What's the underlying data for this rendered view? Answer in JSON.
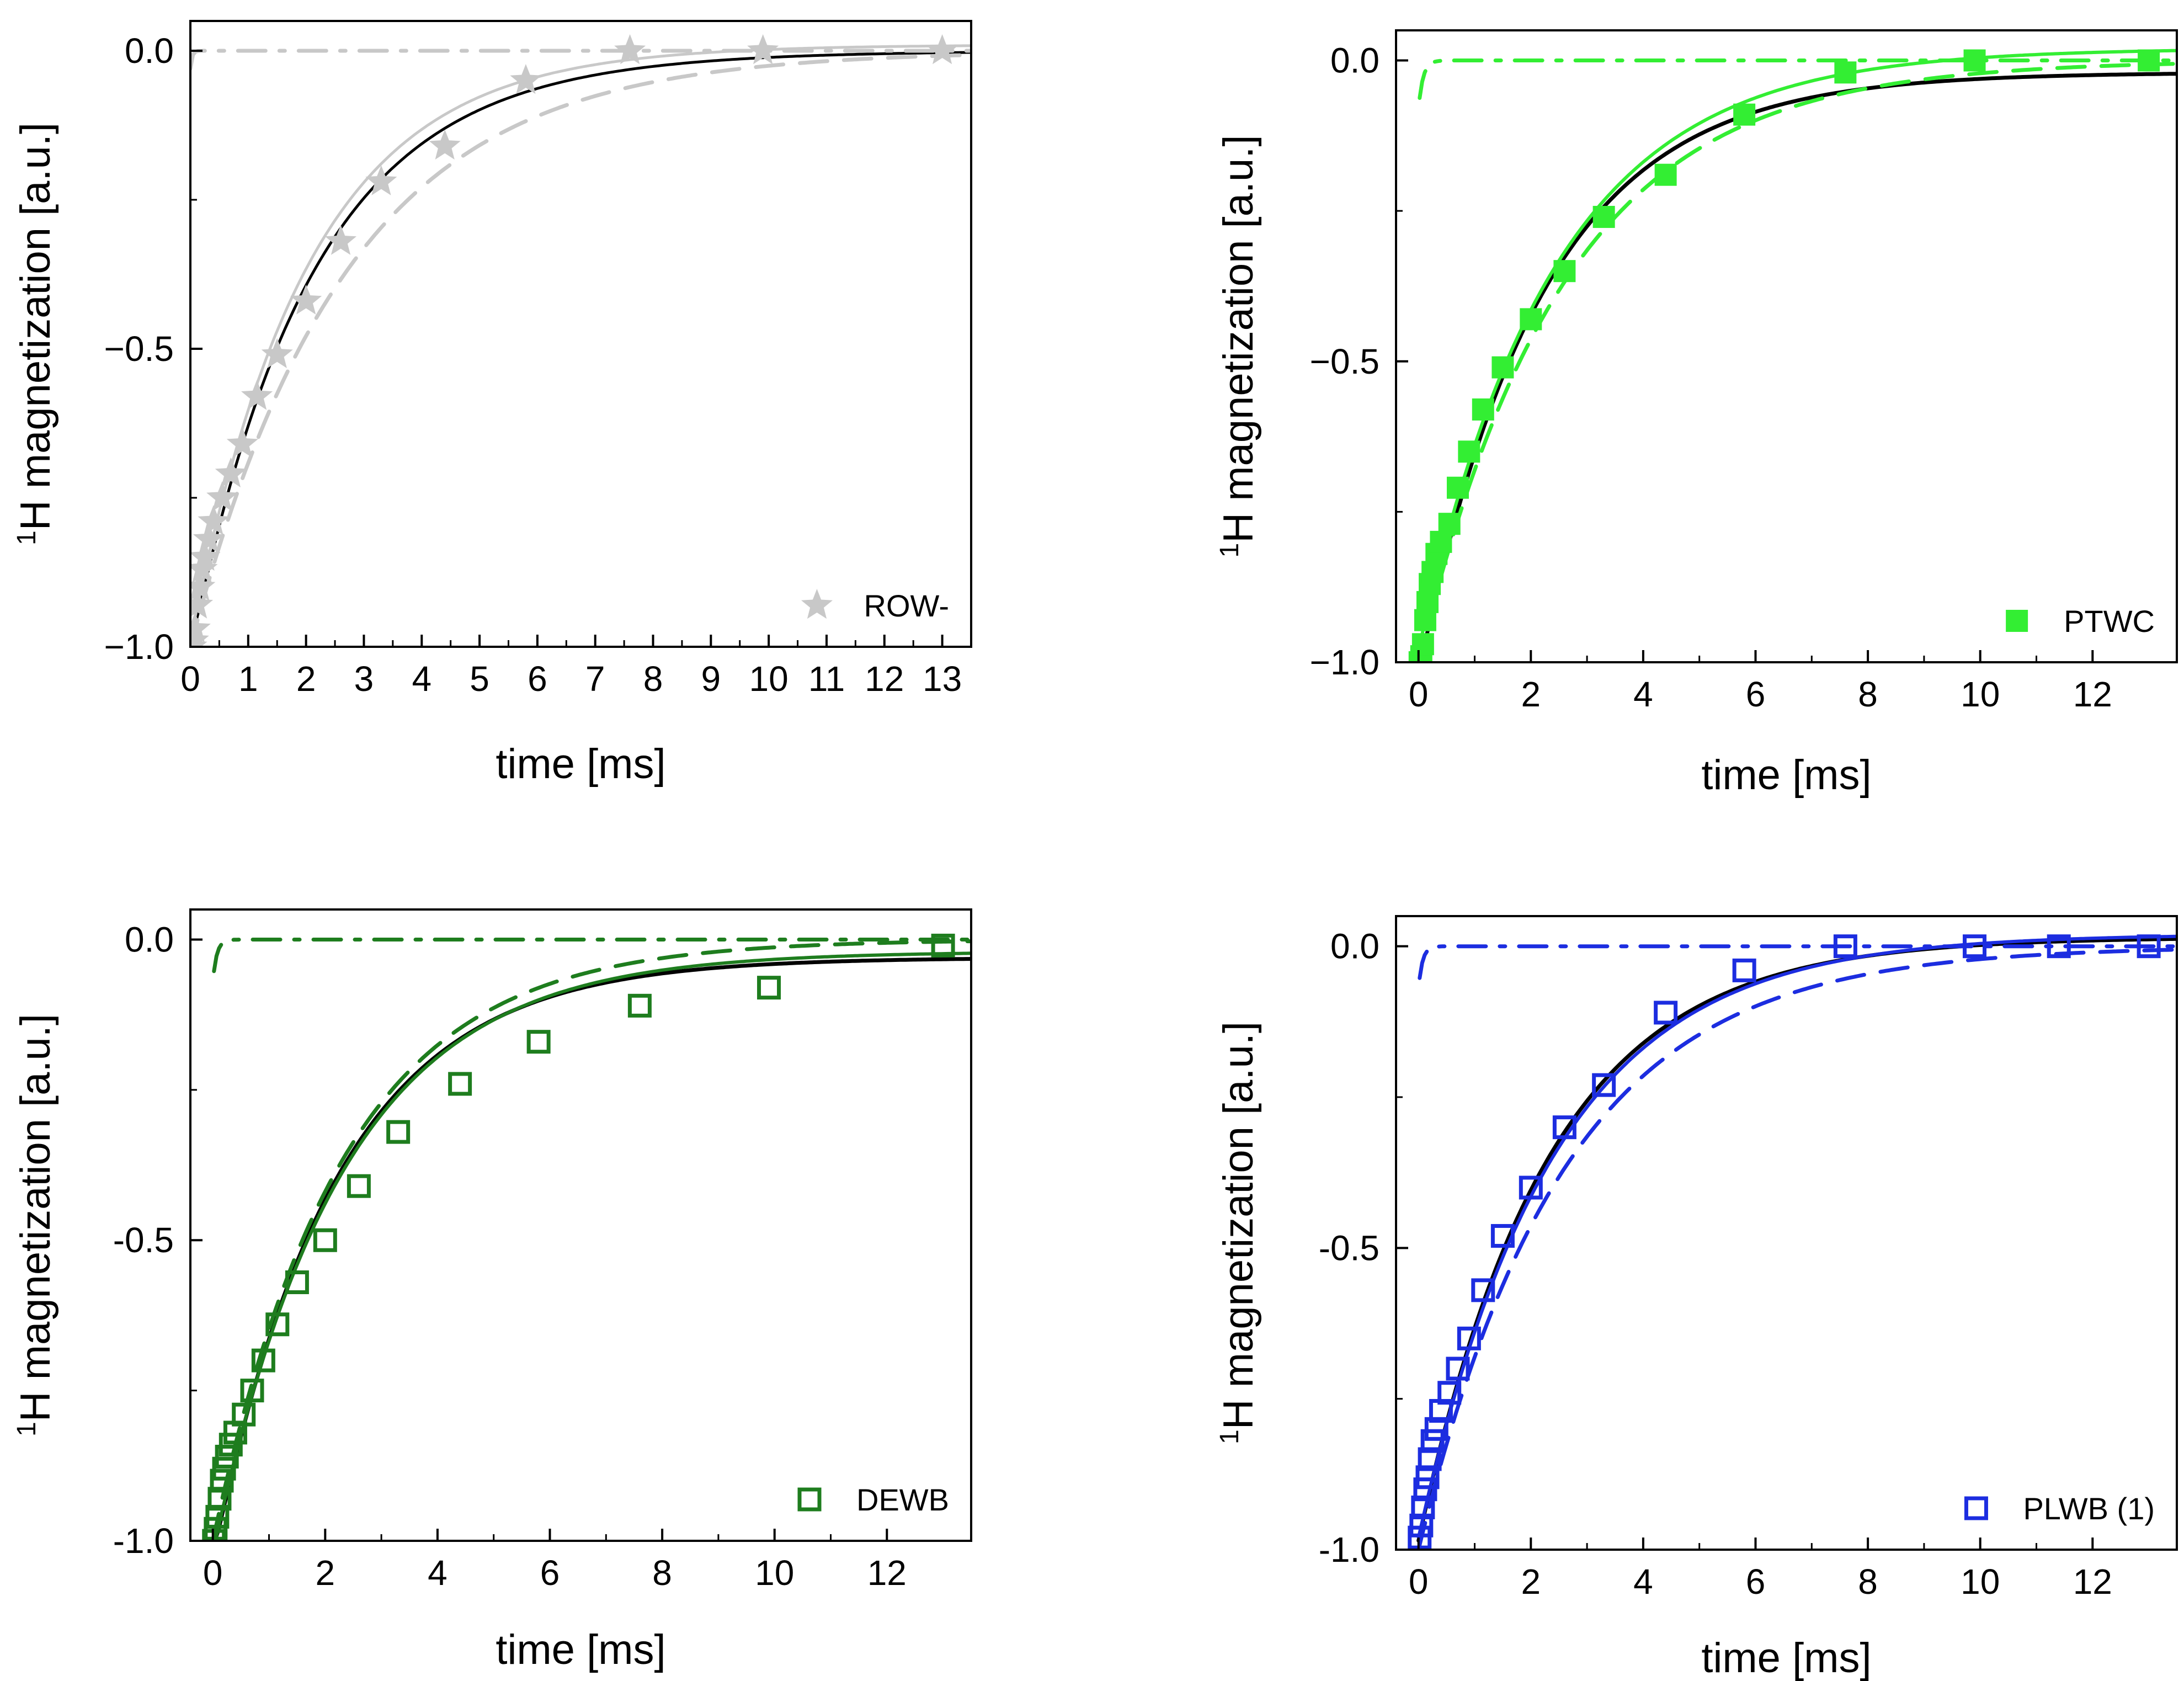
{
  "chart_data": [
    {
      "type": "scatter",
      "ylabel_sup": "1",
      "ylabel": "H magnetization [a.u.]",
      "xlabel": "time [ms]",
      "xlim": [
        0,
        13.5
      ],
      "ylim": [
        -1.0,
        0.05
      ],
      "xticks": [
        0,
        1,
        2,
        3,
        4,
        5,
        6,
        7,
        8,
        9,
        10,
        11,
        12,
        13
      ],
      "xtick_labels": [
        "0",
        "1",
        "2",
        "3",
        "4",
        "5",
        "6",
        "7",
        "8",
        "9",
        "10",
        "11",
        "12",
        "13"
      ],
      "yticks": [
        0.0,
        -0.5,
        -1.0
      ],
      "ytick_labels": [
        "0.0",
        "−0.5",
        "−1.0"
      ],
      "legend": "ROW-",
      "color": "#c8c8c8",
      "marker": "star",
      "x": [
        0.02,
        0.05,
        0.08,
        0.12,
        0.16,
        0.2,
        0.25,
        0.32,
        0.4,
        0.55,
        0.7,
        0.9,
        1.15,
        1.5,
        2.0,
        2.6,
        3.3,
        4.4,
        5.8,
        7.6,
        9.9,
        13.0
      ],
      "y": [
        -1.0,
        -0.99,
        -0.97,
        -0.93,
        -0.9,
        -0.87,
        -0.85,
        -0.82,
        -0.79,
        -0.75,
        -0.71,
        -0.66,
        -0.58,
        -0.51,
        -0.42,
        -0.32,
        -0.22,
        -0.16,
        -0.05,
        0.0,
        0.0,
        0.0
      ],
      "fits": [
        {
          "name": "total",
          "color": "#000000",
          "dash": "",
          "a": 0.05,
          "k": -1.01,
          "b": 0.0,
          "t1": 2.0,
          "t2": 3.0,
          "w": 5,
          "mix": 0.15,
          "tmin": 0.02
        },
        {
          "name": "component",
          "color": "#c8c8c8",
          "dash": "",
          "a": 0.0,
          "k": -1.0,
          "b": 0.01,
          "t1": 2.0,
          "t2": 2.5,
          "w": 5,
          "mix": 0.1,
          "tmin": 0.0
        },
        {
          "name": "fast",
          "color": "#c8c8c8",
          "dash": "50,25,10,25",
          "a": 0.0,
          "k": -0.03,
          "b": 0.0,
          "t1": 0.03,
          "t2": 0.03,
          "w": 7,
          "mix": 0,
          "tmin": 0.0
        },
        {
          "name": "slow",
          "color": "#c8c8c8",
          "dash": "50,30",
          "a": 0.0,
          "k": -1.0,
          "b": 0.0,
          "t1": 2.7,
          "t2": 3.0,
          "w": 7,
          "mix": 0.05,
          "tmin": 0.0
        }
      ]
    },
    {
      "type": "scatter",
      "ylabel_sup": "1",
      "ylabel": "H magnetization [a.u.]",
      "xlabel": "time [ms]",
      "xlim": [
        -0.4,
        13.5
      ],
      "ylim": [
        -1.0,
        0.05
      ],
      "xticks": [
        0,
        2,
        4,
        6,
        8,
        10,
        12
      ],
      "xtick_labels": [
        "0",
        "2",
        "4",
        "6",
        "8",
        "10",
        "12"
      ],
      "yticks": [
        0.0,
        -0.5,
        -1.0
      ],
      "ytick_labels": [
        "0.0",
        "−0.5",
        "−1.0"
      ],
      "legend": "PTWC",
      "color": "#33ee33",
      "marker": "square-filled",
      "x": [
        0.02,
        0.05,
        0.08,
        0.12,
        0.16,
        0.2,
        0.25,
        0.32,
        0.4,
        0.55,
        0.7,
        0.9,
        1.15,
        1.5,
        2.0,
        2.6,
        3.3,
        4.4,
        5.8,
        7.6,
        9.9,
        13.0
      ],
      "y": [
        -1.0,
        -0.99,
        -0.97,
        -0.93,
        -0.9,
        -0.87,
        -0.85,
        -0.82,
        -0.8,
        -0.77,
        -0.71,
        -0.65,
        -0.58,
        -0.51,
        -0.43,
        -0.35,
        -0.26,
        -0.19,
        -0.09,
        -0.02,
        0.0,
        0.0
      ],
      "fits": [
        {
          "name": "total",
          "color": "#000000",
          "dash": "",
          "a": 0.01,
          "k": -1.0,
          "b": -0.02,
          "t1": 2.2,
          "t2": 2.2,
          "w": 7,
          "mix": 0,
          "tmin": 0.0
        },
        {
          "name": "component",
          "color": "#33ee33",
          "dash": "",
          "a": 0.0,
          "k": -1.0,
          "b": 0.02,
          "t1": 2.4,
          "t2": 2.4,
          "w": 6,
          "mix": 0,
          "tmin": 0.0
        },
        {
          "name": "fast",
          "color": "#33ee33",
          "dash": "50,25,10,25",
          "a": 0.0,
          "k": -0.08,
          "b": 0.0,
          "t1": 0.08,
          "t2": 0.08,
          "w": 7,
          "mix": 0,
          "tmin": 0.02
        },
        {
          "name": "slow",
          "color": "#33ee33",
          "dash": "50,30",
          "a": 0.0,
          "k": -1.0,
          "b": 0.0,
          "t1": 2.6,
          "t2": 2.6,
          "w": 7,
          "mix": 0,
          "tmin": 0.0
        }
      ]
    },
    {
      "type": "scatter",
      "ylabel_sup": "1",
      "ylabel": "H magnetization [a.u.]",
      "xlabel": "time [ms]",
      "xlim": [
        -0.4,
        13.5
      ],
      "ylim": [
        -1.0,
        0.05
      ],
      "xticks": [
        0,
        2,
        4,
        6,
        8,
        10,
        12
      ],
      "xtick_labels": [
        "0",
        "2",
        "4",
        "6",
        "8",
        "10",
        "12"
      ],
      "yticks": [
        0.0,
        -0.5,
        -1.0
      ],
      "ytick_labels": [
        "0.0",
        "-0.5",
        "-1.0"
      ],
      "legend": "DEWB",
      "color": "#1e7d1e",
      "marker": "square-open",
      "x": [
        0.02,
        0.05,
        0.08,
        0.12,
        0.16,
        0.2,
        0.25,
        0.32,
        0.4,
        0.55,
        0.7,
        0.9,
        1.15,
        1.5,
        2.0,
        2.6,
        3.3,
        4.4,
        5.8,
        7.6,
        9.9,
        13.0
      ],
      "y": [
        -1.0,
        -0.98,
        -0.96,
        -0.93,
        -0.9,
        -0.88,
        -0.86,
        -0.84,
        -0.82,
        -0.79,
        -0.75,
        -0.7,
        -0.64,
        -0.57,
        -0.5,
        -0.41,
        -0.32,
        -0.24,
        -0.17,
        -0.11,
        -0.08,
        -0.01
      ],
      "fits": [
        {
          "name": "total",
          "color": "#000000",
          "dash": "",
          "a": 0.03,
          "k": -1.0,
          "b": -0.03,
          "t1": 2.2,
          "t2": 2.2,
          "w": 7,
          "mix": 0,
          "tmin": 0.0
        },
        {
          "name": "component",
          "color": "#1e7d1e",
          "dash": "",
          "a": 0.0,
          "k": -1.0,
          "b": -0.02,
          "t1": 2.3,
          "t2": 2.3,
          "w": 6,
          "mix": 0,
          "tmin": 0.0
        },
        {
          "name": "fast",
          "color": "#1e7d1e",
          "dash": "50,25,10,25",
          "a": 0.0,
          "k": -0.07,
          "b": 0.0,
          "t1": 0.07,
          "t2": 0.07,
          "w": 7,
          "mix": 0,
          "tmin": 0.02
        },
        {
          "name": "slow",
          "color": "#1e7d1e",
          "dash": "50,30",
          "a": 0.0,
          "k": -1.0,
          "b": 0.0,
          "t1": 2.3,
          "t2": 2.3,
          "w": 7,
          "mix": 0,
          "tmin": 0.0
        }
      ]
    },
    {
      "type": "scatter",
      "ylabel_sup": "1",
      "ylabel": "H magnetization [a.u.]",
      "xlabel": "time [ms]",
      "xlim": [
        -0.4,
        13.5
      ],
      "ylim": [
        -1.0,
        0.05
      ],
      "xticks": [
        0,
        2,
        4,
        6,
        8,
        10,
        12
      ],
      "xtick_labels": [
        "0",
        "2",
        "4",
        "6",
        "8",
        "10",
        "12"
      ],
      "yticks": [
        0.0,
        -0.5,
        -1.0
      ],
      "ytick_labels": [
        "0.0",
        "-0.5",
        "-1.0"
      ],
      "legend": "PLWB (1)",
      "color": "#1c2de0",
      "marker": "square-open",
      "x": [
        0.02,
        0.05,
        0.08,
        0.12,
        0.16,
        0.2,
        0.25,
        0.32,
        0.4,
        0.55,
        0.7,
        0.9,
        1.15,
        1.5,
        2.0,
        2.6,
        3.3,
        4.4,
        5.8,
        7.6,
        9.9,
        11.4,
        13.0
      ],
      "y": [
        -0.98,
        -0.96,
        -0.93,
        -0.9,
        -0.88,
        -0.85,
        -0.82,
        -0.8,
        -0.77,
        -0.74,
        -0.7,
        -0.65,
        -0.57,
        -0.48,
        -0.4,
        -0.3,
        -0.23,
        -0.11,
        -0.04,
        0.0,
        0.0,
        0.0,
        0.0
      ],
      "fits": [
        {
          "name": "total",
          "color": "#000000",
          "dash": "",
          "a": 0.0,
          "k": -1.0,
          "b": 0.015,
          "t1": 2.3,
          "t2": 2.3,
          "w": 7,
          "mix": 0,
          "tmin": 0.0
        },
        {
          "name": "component",
          "color": "#1c2de0",
          "dash": "",
          "a": 0.0,
          "k": -1.0,
          "b": 0.02,
          "t1": 2.4,
          "t2": 2.4,
          "w": 6,
          "mix": 0,
          "tmin": 0.0
        },
        {
          "name": "fast",
          "color": "#1c2de0",
          "dash": "50,25,10,25",
          "a": 0.0,
          "k": -0.07,
          "b": 0.0,
          "t1": 0.07,
          "t2": 0.07,
          "w": 7,
          "mix": 0,
          "tmin": 0.02
        },
        {
          "name": "slow",
          "color": "#1c2de0",
          "dash": "50,30",
          "a": 0.0,
          "k": -1.0,
          "b": 0.0,
          "t1": 2.6,
          "t2": 2.6,
          "w": 7,
          "mix": 0,
          "tmin": 0.0
        }
      ]
    }
  ]
}
